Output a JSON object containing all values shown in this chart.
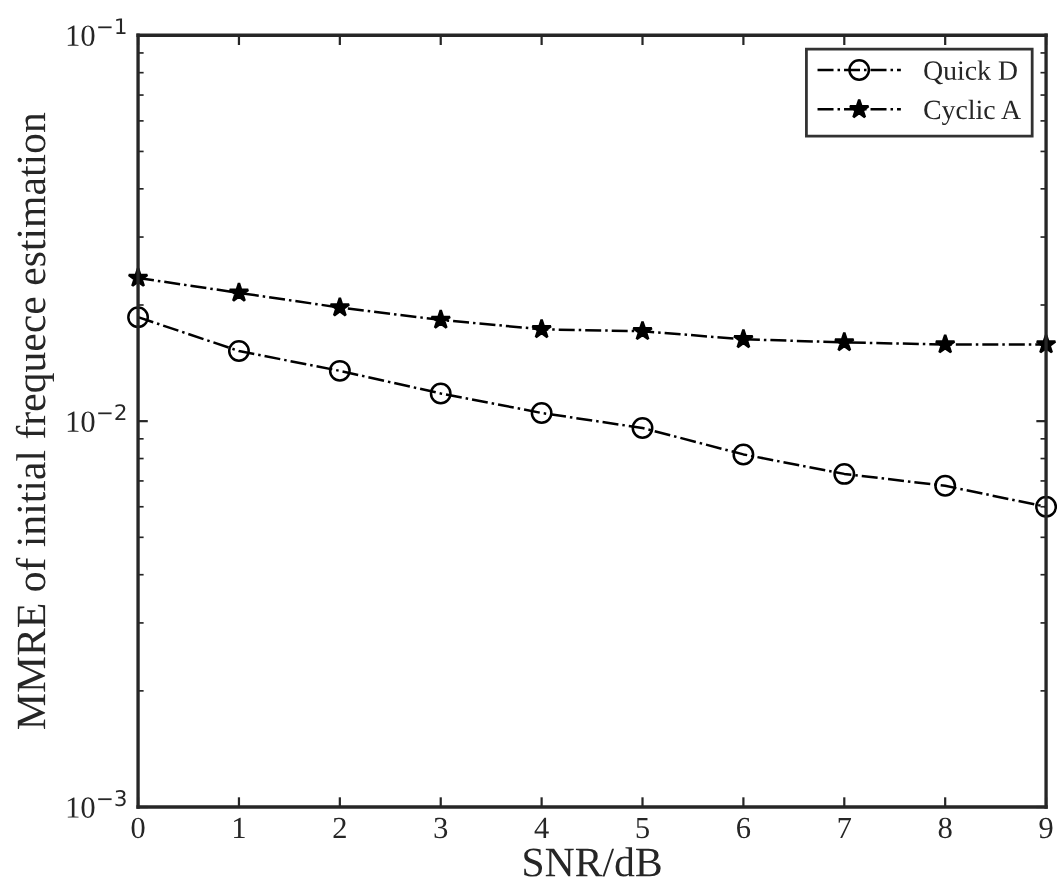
{
  "chart_data": {
    "type": "line",
    "xlabel": "SNR/dB",
    "ylabel": "MMRE of initial frequece estimation",
    "x": [
      0,
      1,
      2,
      3,
      4,
      5,
      6,
      7,
      8,
      9
    ],
    "series": [
      {
        "name": "Quick D",
        "color": "#000000",
        "marker": "circle",
        "values": [
          0.0186,
          0.0152,
          0.0135,
          0.0118,
          0.0105,
          0.0096,
          0.0082,
          0.0073,
          0.0068,
          0.006
        ]
      },
      {
        "name": "Cyclic A",
        "color": "#000000",
        "marker": "star",
        "values": [
          0.0235,
          0.0215,
          0.0197,
          0.0183,
          0.0173,
          0.0171,
          0.0163,
          0.016,
          0.0158,
          0.0158
        ]
      }
    ],
    "line_style": "dashdot",
    "log": "y",
    "xlim": [
      0,
      9
    ],
    "ylim": [
      0.001,
      0.1
    ],
    "xticks": [
      0,
      1,
      2,
      3,
      4,
      5,
      6,
      7,
      8,
      9
    ],
    "yticks": [
      {
        "value": 0.001,
        "label": "10$^{−3}$"
      },
      {
        "value": 0.01,
        "label": "10$^{−2}$"
      },
      {
        "value": 0.1,
        "label": "10$^{−1}$"
      }
    ],
    "legend": "top right",
    "grid": false
  }
}
